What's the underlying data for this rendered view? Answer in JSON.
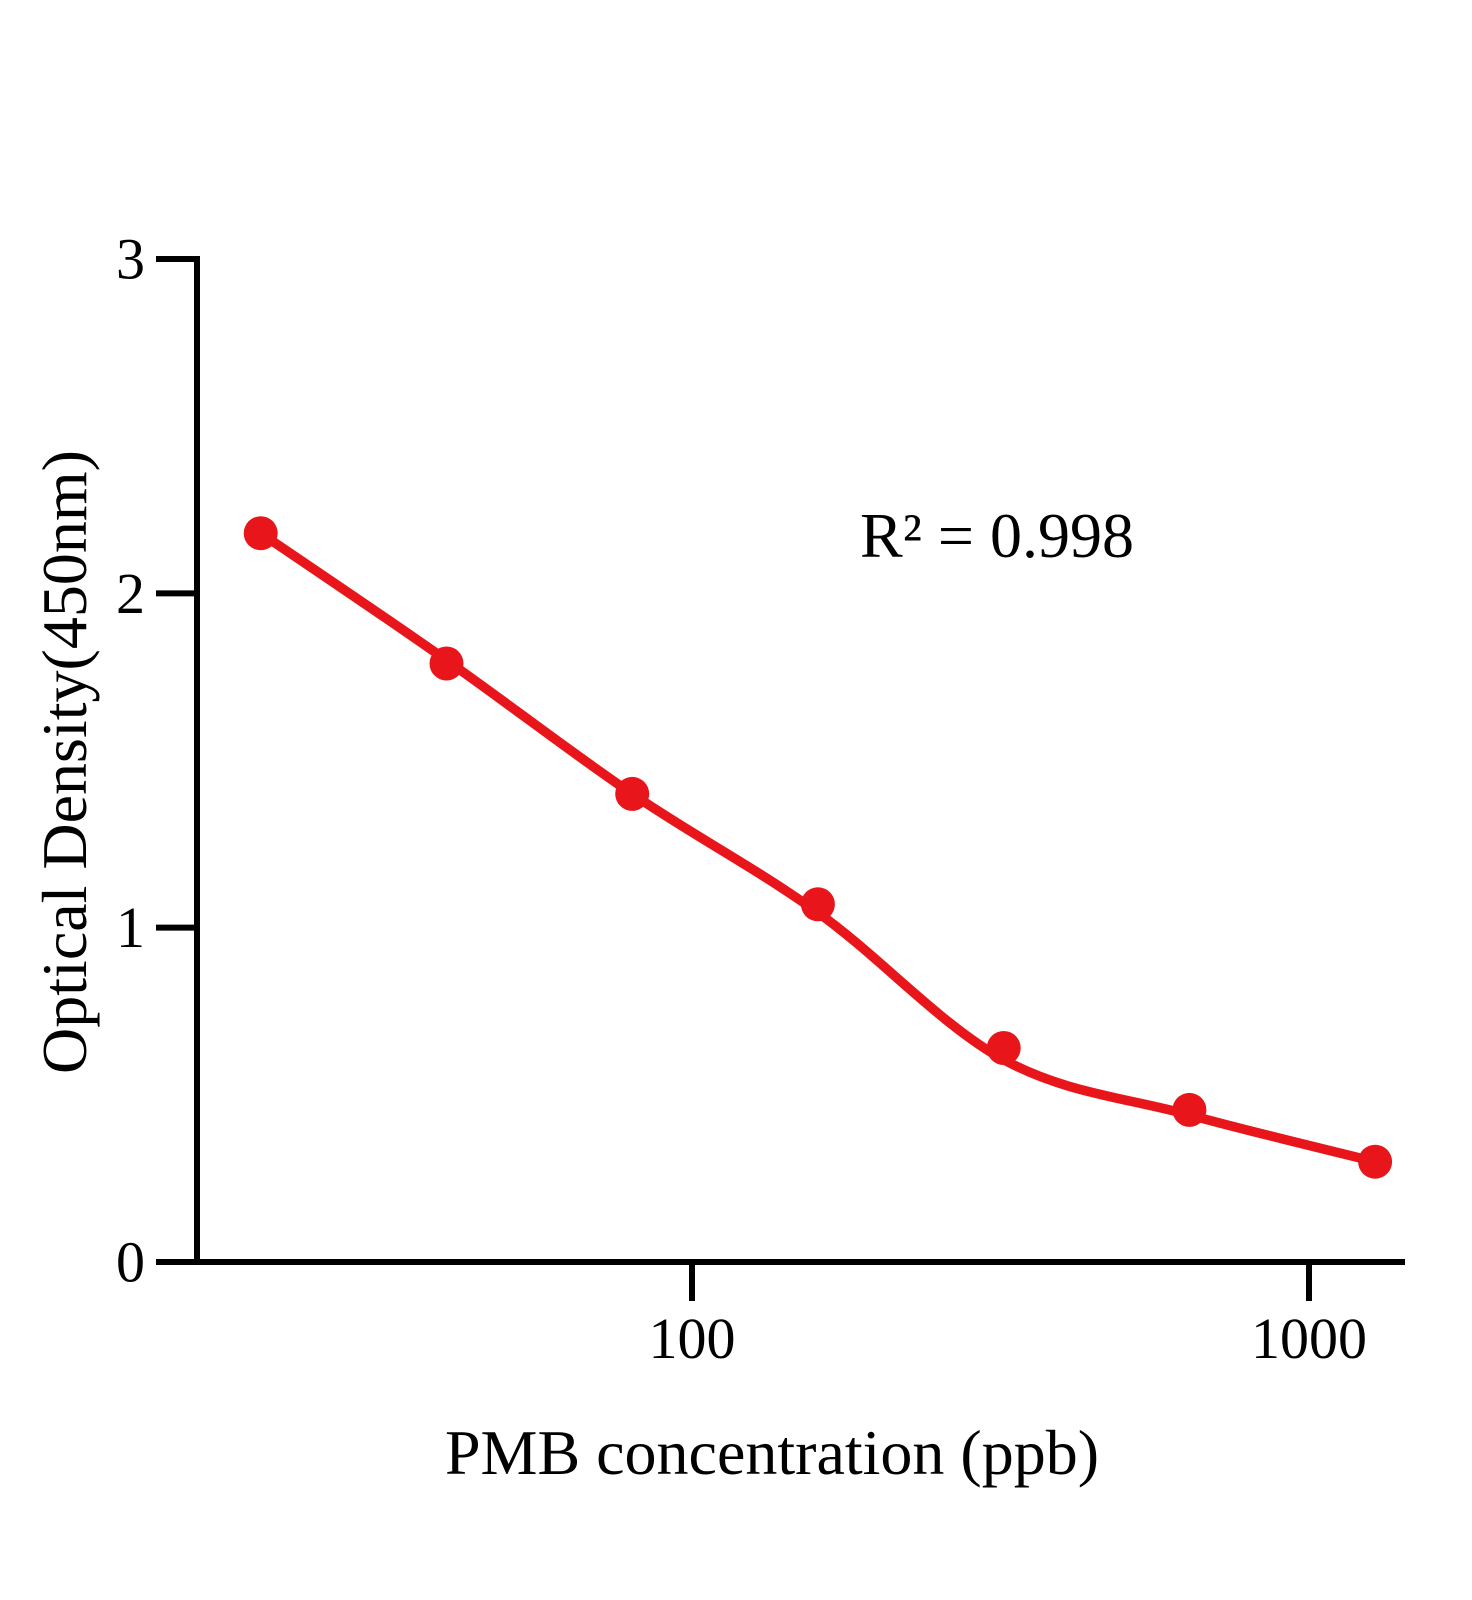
{
  "chart_data": {
    "type": "scatter",
    "title": "",
    "xlabel": "PMB concentration (ppb)",
    "ylabel": "Optical Density(450nm)",
    "annotation": "R² = 0.998",
    "x_scale": "log10",
    "x": [
      20,
      40,
      80,
      160,
      320,
      640,
      1280
    ],
    "y": [
      2.18,
      1.79,
      1.4,
      1.07,
      0.64,
      0.455,
      0.3
    ],
    "fit_curve_y": [
      2.18,
      1.8,
      1.4,
      1.045,
      0.605,
      0.44,
      0.3
    ],
    "x_ticks": [
      {
        "value": 100,
        "label": "100"
      },
      {
        "value": 1000,
        "label": "1000"
      }
    ],
    "y_ticks": [
      {
        "value": 0,
        "label": "0"
      },
      {
        "value": 1,
        "label": "1"
      },
      {
        "value": 2,
        "label": "2"
      },
      {
        "value": 3,
        "label": "3"
      }
    ],
    "xlim": [
      15.8,
      1430
    ],
    "ylim": [
      0,
      3
    ],
    "grid": false,
    "legend": false,
    "series_color": "#e8161b",
    "axis_color": "#000000",
    "background": "#ffffff"
  }
}
